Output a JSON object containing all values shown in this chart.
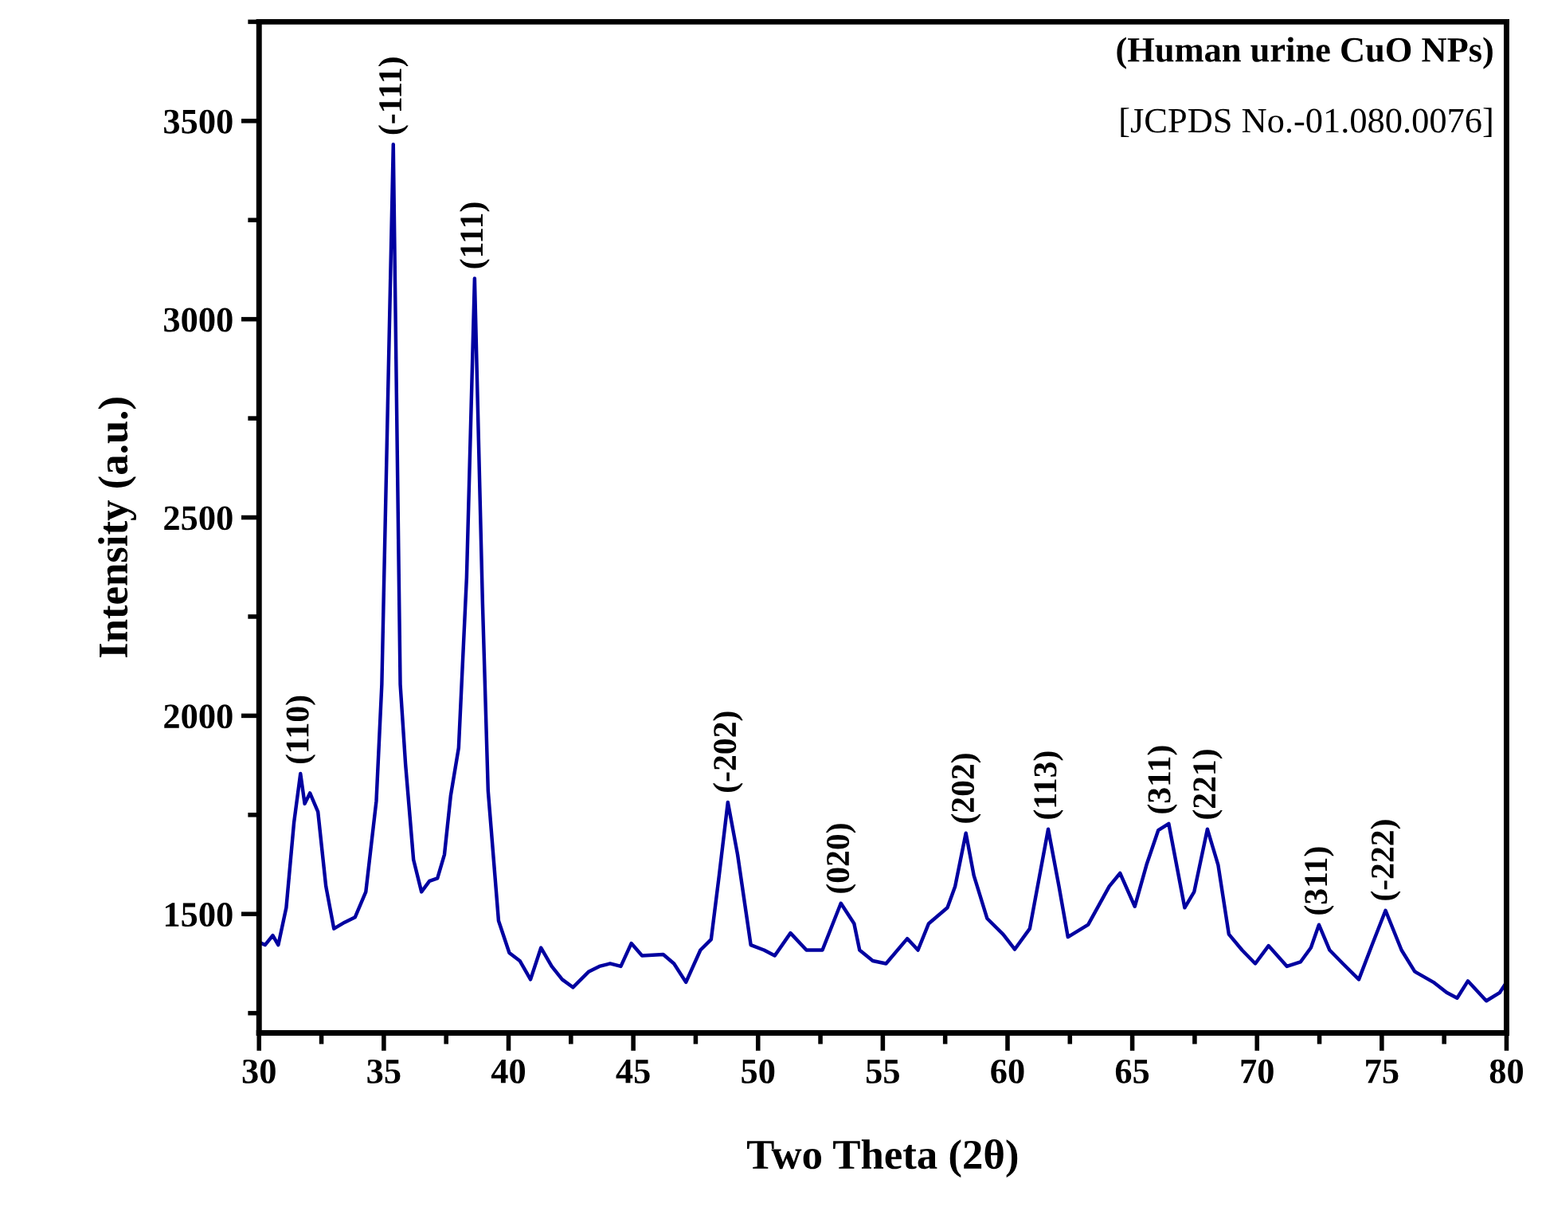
{
  "chart_data": {
    "type": "line",
    "xlabel": "Two Theta (2θ)",
    "ylabel": "Intensity (a.u.)",
    "x": [
      30.0,
      30.24,
      30.55,
      30.77,
      31.09,
      31.4,
      31.66,
      31.83,
      32.04,
      32.36,
      32.68,
      33.0,
      33.43,
      33.85,
      34.28,
      34.7,
      34.92,
      35.38,
      35.66,
      35.87,
      36.19,
      36.51,
      36.83,
      37.15,
      37.43,
      37.68,
      38.0,
      38.32,
      38.64,
      38.96,
      39.18,
      39.6,
      40.03,
      40.45,
      40.88,
      41.3,
      41.73,
      42.15,
      42.58,
      43.22,
      43.64,
      44.07,
      44.5,
      44.92,
      45.35,
      46.2,
      46.63,
      47.11,
      47.69,
      48.12,
      48.44,
      48.79,
      49.18,
      49.71,
      50.24,
      50.67,
      51.3,
      51.94,
      52.58,
      53.32,
      53.85,
      54.07,
      54.6,
      55.13,
      55.98,
      56.41,
      56.84,
      57.59,
      57.9,
      58.33,
      58.65,
      59.18,
      59.82,
      60.29,
      60.89,
      61.63,
      62.06,
      62.42,
      63.23,
      64.08,
      64.51,
      65.1,
      65.57,
      66.04,
      66.46,
      67.1,
      67.48,
      68.01,
      68.44,
      68.87,
      69.4,
      69.93,
      70.46,
      71.2,
      71.74,
      72.16,
      72.48,
      72.91,
      73.44,
      74.08,
      74.61,
      75.15,
      75.79,
      76.32,
      77.07,
      77.6,
      78.02,
      78.45,
      79.19,
      79.73,
      80.0
    ],
    "series": [
      {
        "color": "#0000a0",
        "values": [
          1429,
          1422,
          1446,
          1422,
          1516,
          1731,
          1854,
          1778,
          1805,
          1758,
          1570,
          1463,
          1479,
          1492,
          1556,
          1785,
          2079,
          3441,
          2079,
          1878,
          1637,
          1556,
          1583,
          1590,
          1650,
          1798,
          1919,
          2348,
          3103,
          2281,
          1811,
          1483,
          1402,
          1382,
          1335,
          1415,
          1368,
          1335,
          1315,
          1355,
          1368,
          1375,
          1368,
          1426,
          1395,
          1398,
          1375,
          1328,
          1409,
          1436,
          1597,
          1782,
          1650,
          1422,
          1409,
          1395,
          1452,
          1409,
          1409,
          1527,
          1476,
          1409,
          1382,
          1375,
          1438,
          1409,
          1476,
          1516,
          1570,
          1704,
          1597,
          1489,
          1449,
          1411,
          1463,
          1714,
          1570,
          1442,
          1473,
          1570,
          1603,
          1519,
          1624,
          1711,
          1728,
          1516,
          1556,
          1714,
          1624,
          1449,
          1409,
          1375,
          1420,
          1368,
          1379,
          1415,
          1473,
          1409,
          1375,
          1335,
          1422,
          1509,
          1409,
          1355,
          1328,
          1302,
          1288,
          1331,
          1281,
          1302,
          1328
        ]
      }
    ],
    "xlim": [
      30,
      80
    ],
    "xticks": [
      30,
      35,
      40,
      45,
      50,
      55,
      60,
      65,
      70,
      75,
      80
    ],
    "ylim": [
      1200,
      3750
    ],
    "yticks": [
      1500,
      2000,
      2500,
      3000,
      3500
    ],
    "grid": false,
    "legend": false,
    "marker": "none",
    "line_style": "solid",
    "annotations": [
      "(Human urine CuO NPs)",
      "[JCPDS No.-01.080.0076]",
      {
        "text": "(110)",
        "x": 31.66,
        "y": 1854
      },
      {
        "text": "(-111)",
        "x": 35.38,
        "y": 3441
      },
      {
        "text": "(111)",
        "x": 38.64,
        "y": 3103
      },
      {
        "text": "(-202)",
        "x": 48.79,
        "y": 1782
      },
      {
        "text": "(020)",
        "x": 53.32,
        "y": 1527
      },
      {
        "text": "(202)",
        "x": 58.33,
        "y": 1704
      },
      {
        "text": "(113)",
        "x": 61.63,
        "y": 1714
      },
      {
        "text": "(311)",
        "x": 66.2,
        "y": 1728
      },
      {
        "text": "(221)",
        "x": 68.01,
        "y": 1714
      },
      {
        "text": "(311)",
        "x": 72.48,
        "y": 1473
      },
      {
        "text": "(-222)",
        "x": 75.15,
        "y": 1509
      }
    ]
  }
}
